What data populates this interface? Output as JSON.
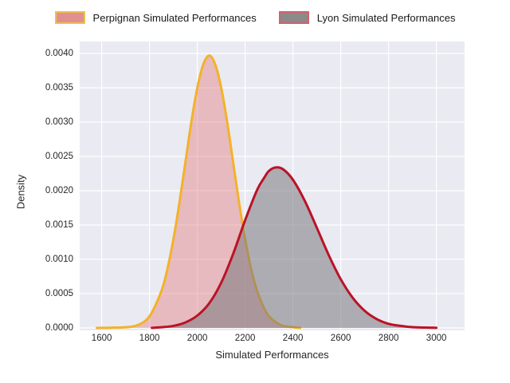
{
  "figure": {
    "background": "#ffffff",
    "plot_background": "#EAEAF2",
    "grid_color": "#ffffff",
    "text_color": "#262626"
  },
  "legend": {
    "position": "top-center",
    "items": [
      {
        "label": "Perpignan Simulated Performances",
        "swatch_fill": "#E09090",
        "swatch_border": "#F1C04A"
      },
      {
        "label": "Lyon Simulated Performances",
        "swatch_fill": "#8A8A8A",
        "swatch_border": "#D3616C"
      }
    ]
  },
  "chart_data": {
    "type": "area",
    "title": "",
    "xlabel": "Simulated Performances",
    "ylabel": "Density",
    "grid": true,
    "legend_position": "top",
    "xlim": [
      1508,
      3118
    ],
    "ylim": [
      -3.5e-05,
      0.004175
    ],
    "x_ticks": [
      1600,
      1800,
      2000,
      2200,
      2400,
      2600,
      2800,
      3000
    ],
    "y_ticks": [
      {
        "value": 0.0,
        "label": "0.0000"
      },
      {
        "value": 0.0005,
        "label": "0.0005"
      },
      {
        "value": 0.001,
        "label": "0.0010"
      },
      {
        "value": 0.0015,
        "label": "0.0015"
      },
      {
        "value": 0.002,
        "label": "0.0020"
      },
      {
        "value": 0.0025,
        "label": "0.0025"
      },
      {
        "value": 0.003,
        "label": "0.0030"
      },
      {
        "value": 0.0035,
        "label": "0.0035"
      },
      {
        "value": 0.004,
        "label": "0.0040"
      }
    ],
    "series": [
      {
        "name": "Perpignan Simulated Performances",
        "line_color": "#F3B229",
        "line_width": 3,
        "fill_color": "rgba(226,128,128,0.45)",
        "peak": {
          "x": 2050,
          "y": 0.00397
        },
        "points": [
          [
            1580,
            0.0
          ],
          [
            1620,
            2e-06
          ],
          [
            1660,
            5e-06
          ],
          [
            1700,
            1e-05
          ],
          [
            1750,
            4e-05
          ],
          [
            1800,
            0.00017
          ],
          [
            1850,
            0.00054
          ],
          [
            1875,
            0.00086
          ],
          [
            1900,
            0.00129
          ],
          [
            1925,
            0.00182
          ],
          [
            1950,
            0.00241
          ],
          [
            1975,
            0.003
          ],
          [
            2000,
            0.0035
          ],
          [
            2025,
            0.00384
          ],
          [
            2050,
            0.00397
          ],
          [
            2075,
            0.00384
          ],
          [
            2100,
            0.0035
          ],
          [
            2125,
            0.003
          ],
          [
            2150,
            0.00241
          ],
          [
            2175,
            0.00182
          ],
          [
            2200,
            0.00129
          ],
          [
            2225,
            0.00086
          ],
          [
            2250,
            0.00054
          ],
          [
            2275,
            0.00032
          ],
          [
            2300,
            0.00017
          ],
          [
            2350,
            4e-05
          ],
          [
            2400,
            1e-05
          ],
          [
            2430,
            2e-06
          ]
        ]
      },
      {
        "name": "Lyon Simulated Performances",
        "line_color": "#BC1226",
        "line_width": 3,
        "fill_color": "rgba(120,120,126,0.55)",
        "peak": {
          "x": 2330,
          "y": 0.00234
        },
        "points": [
          [
            1810,
            2e-06
          ],
          [
            1850,
            1e-05
          ],
          [
            1900,
            3e-05
          ],
          [
            1950,
            8e-05
          ],
          [
            2000,
            0.00018
          ],
          [
            2050,
            0.00036
          ],
          [
            2100,
            0.00066
          ],
          [
            2150,
            0.00108
          ],
          [
            2200,
            0.00157
          ],
          [
            2250,
            0.00201
          ],
          [
            2280,
            0.00219
          ],
          [
            2300,
            0.00229
          ],
          [
            2330,
            0.00234
          ],
          [
            2360,
            0.00231
          ],
          [
            2400,
            0.00216
          ],
          [
            2450,
            0.00185
          ],
          [
            2500,
            0.00146
          ],
          [
            2550,
            0.00106
          ],
          [
            2600,
            0.00071
          ],
          [
            2650,
            0.00044
          ],
          [
            2700,
            0.00025
          ],
          [
            2750,
            0.00013
          ],
          [
            2800,
            6e-05
          ],
          [
            2850,
            3e-05
          ],
          [
            2900,
            1.2e-05
          ],
          [
            2950,
            5e-06
          ],
          [
            3000,
            2e-06
          ]
        ]
      }
    ]
  }
}
